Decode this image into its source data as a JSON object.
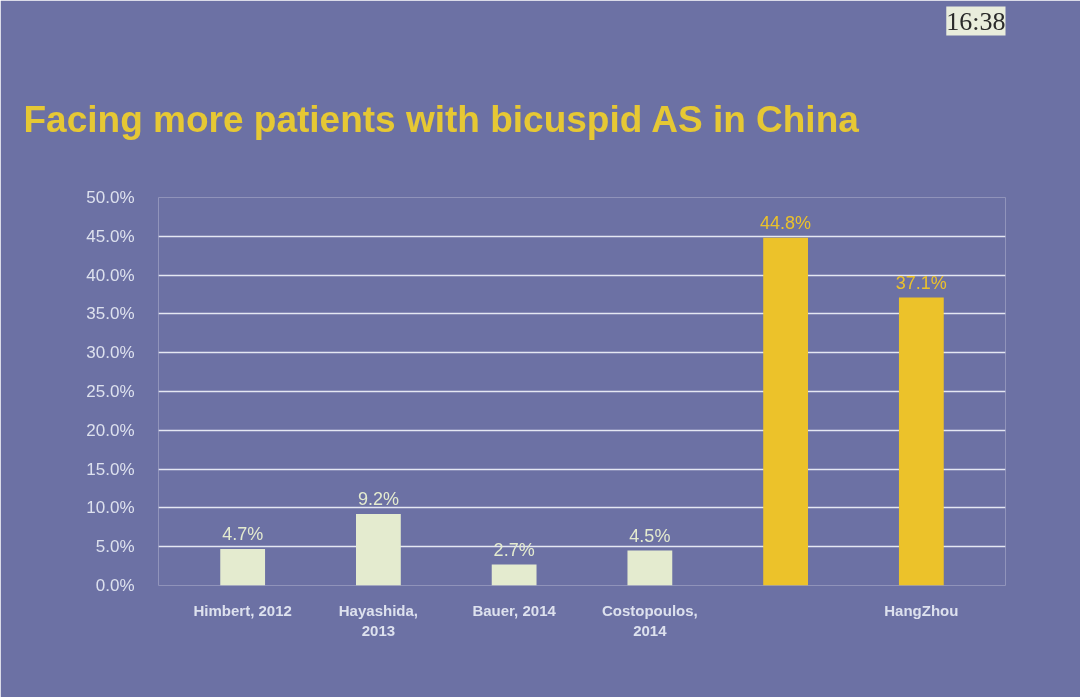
{
  "chart_data": {
    "type": "bar",
    "title": "Facing more patients with bicuspid AS in China",
    "annotations": [
      "16:38"
    ],
    "categories": [
      "Himbert, 2012",
      "Hayashida, 2013",
      "Bauer, 2014",
      "Costopoulos, 2014",
      null,
      "HangZhou"
    ],
    "values": [
      4.7,
      9.2,
      2.7,
      4.5,
      44.8,
      37.1
    ],
    "value_labels": [
      "4.7%",
      "9.2%",
      "2.7%",
      "4.5%",
      "44.8%",
      "37.1%"
    ],
    "colors": [
      "#e4ebcf",
      "#e4ebcf",
      "#e4ebcf",
      "#e4ebcf",
      "#ecc22a",
      "#ecc22a"
    ],
    "ylim": [
      0,
      50
    ],
    "yticks": [
      {
        "value": 0,
        "label": "0.0%"
      },
      {
        "value": 5,
        "label": "5.0%"
      },
      {
        "value": 10,
        "label": "10.0%"
      },
      {
        "value": 15,
        "label": "15.0%"
      },
      {
        "value": 20,
        "label": "20.0%"
      },
      {
        "value": 25,
        "label": "25.0%"
      },
      {
        "value": 30,
        "label": "30.0%"
      },
      {
        "value": 35,
        "label": "35.0%"
      },
      {
        "value": 40,
        "label": "40.0%"
      },
      {
        "value": 45,
        "label": "45.0%"
      },
      {
        "value": 50,
        "label": "50.0%"
      }
    ],
    "grid": "y"
  }
}
